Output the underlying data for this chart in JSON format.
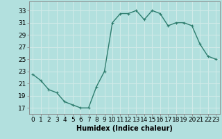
{
  "x": [
    0,
    1,
    2,
    3,
    4,
    5,
    6,
    7,
    8,
    9,
    10,
    11,
    12,
    13,
    14,
    15,
    16,
    17,
    18,
    19,
    20,
    21,
    22,
    23
  ],
  "y": [
    22.5,
    21.5,
    20.0,
    19.5,
    18.0,
    17.5,
    17.0,
    17.0,
    20.5,
    23.0,
    31.0,
    32.5,
    32.5,
    33.0,
    31.5,
    33.0,
    32.5,
    30.5,
    31.0,
    31.0,
    30.5,
    27.5,
    25.5,
    25.0
  ],
  "bg_color": "#b2e0de",
  "grid_color": "#d0eae8",
  "line_color": "#2e7d6e",
  "marker_color": "#2e7d6e",
  "xlabel": "Humidex (Indice chaleur)",
  "yticks": [
    17,
    19,
    21,
    23,
    25,
    27,
    29,
    31,
    33
  ],
  "xticks": [
    0,
    1,
    2,
    3,
    4,
    5,
    6,
    7,
    8,
    9,
    10,
    11,
    12,
    13,
    14,
    15,
    16,
    17,
    18,
    19,
    20,
    21,
    22,
    23
  ],
  "ylim": [
    16.0,
    34.5
  ],
  "xlim": [
    -0.5,
    23.5
  ],
  "xlabel_fontsize": 7,
  "tick_fontsize": 6.5
}
